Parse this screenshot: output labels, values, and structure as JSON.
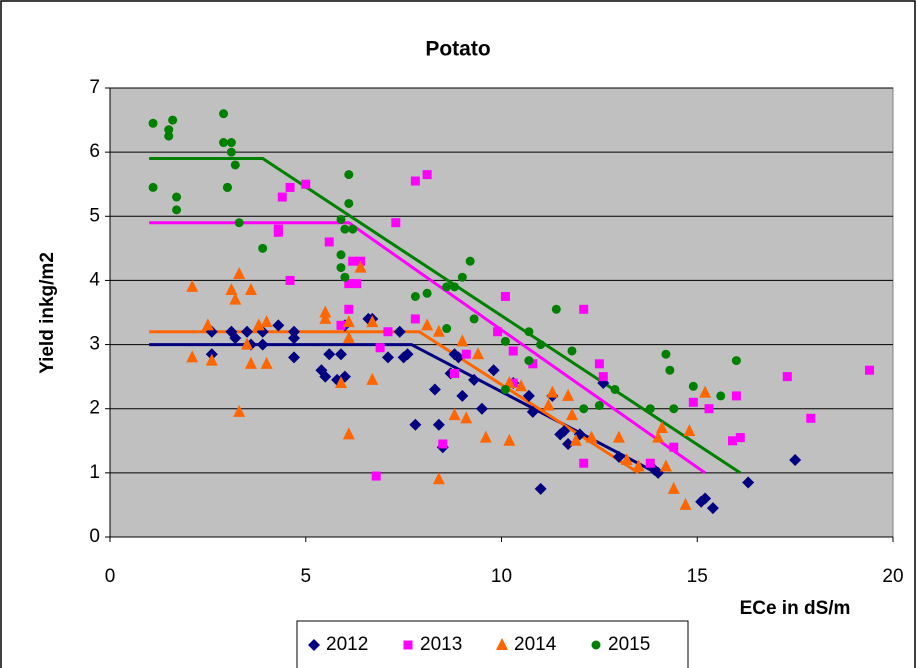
{
  "chart_data": {
    "type": "scatter",
    "title": "Potato",
    "x_label": "ECe in dS/m",
    "y_label": "Yield inkg/m2",
    "xlim": [
      0,
      20
    ],
    "ylim": [
      0,
      7
    ],
    "xticks": [
      0,
      5,
      10,
      15,
      20
    ],
    "yticks": [
      0,
      1,
      2,
      3,
      4,
      5,
      6,
      7
    ],
    "grid": true,
    "legend": "bottom",
    "series": [
      {
        "name": "2012",
        "color": "#000080",
        "marker": "diamond",
        "x": [
          2.6,
          2.6,
          3.1,
          3.2,
          3.5,
          3.6,
          3.9,
          3.9,
          4.3,
          4.7,
          4.7,
          4.7,
          5.4,
          5.5,
          5.6,
          5.8,
          5.9,
          6.0,
          6.0,
          6.6,
          6.7,
          7.1,
          7.4,
          7.5,
          7.6,
          7.8,
          8.3,
          8.4,
          8.5,
          8.7,
          8.8,
          8.9,
          9.0,
          9.3,
          9.5,
          9.8,
          10.3,
          10.7,
          10.8,
          11.0,
          11.3,
          11.5,
          11.6,
          11.7,
          12.0,
          12.6,
          13.0,
          13.9,
          14.0,
          15.1,
          15.2,
          15.4,
          16.3,
          17.5
        ],
        "values": [
          3.2,
          2.85,
          3.2,
          3.1,
          3.2,
          3.0,
          3.2,
          3.0,
          3.3,
          3.2,
          2.8,
          3.1,
          2.6,
          2.5,
          2.85,
          2.45,
          2.85,
          3.3,
          2.5,
          3.4,
          3.4,
          2.8,
          3.2,
          2.8,
          2.85,
          1.75,
          2.3,
          1.75,
          1.4,
          2.55,
          2.85,
          2.8,
          2.2,
          2.45,
          2.0,
          2.6,
          2.4,
          2.2,
          1.95,
          0.75,
          2.2,
          1.6,
          1.65,
          1.45,
          1.6,
          2.4,
          1.25,
          1.05,
          1.0,
          0.55,
          0.6,
          0.45,
          0.85,
          1.2
        ],
        "fit_x": [
          1.0,
          7.7,
          13.8
        ],
        "fit_y": [
          3.0,
          3.0,
          1.05
        ]
      },
      {
        "name": "2013",
        "color": "#ff00ff",
        "marker": "square",
        "x": [
          4.3,
          4.3,
          4.4,
          4.6,
          4.6,
          5.0,
          5.6,
          5.9,
          6.1,
          6.1,
          6.2,
          6.3,
          6.4,
          6.8,
          6.9,
          7.1,
          7.3,
          7.8,
          7.8,
          8.1,
          8.5,
          8.8,
          9.1,
          9.9,
          10.1,
          10.3,
          10.3,
          10.8,
          12.1,
          12.1,
          12.5,
          12.6,
          13.8,
          14.4,
          14.9,
          15.3,
          16.0,
          16.1,
          15.9,
          17.3,
          17.9,
          19.4
        ],
        "values": [
          4.75,
          4.8,
          5.3,
          5.45,
          4.0,
          5.5,
          4.6,
          3.3,
          3.95,
          3.55,
          4.3,
          3.95,
          4.3,
          0.95,
          2.95,
          3.2,
          4.9,
          3.4,
          5.55,
          5.65,
          1.45,
          2.55,
          2.85,
          3.2,
          3.75,
          2.9,
          2.4,
          2.7,
          3.55,
          1.15,
          2.7,
          2.5,
          1.15,
          1.4,
          2.1,
          2.0,
          2.2,
          1.55,
          1.5,
          2.5,
          1.85,
          2.6
        ],
        "fit_x": [
          1.0,
          6.1,
          15.2
        ],
        "fit_y": [
          4.9,
          4.9,
          1.0
        ]
      },
      {
        "name": "2014",
        "color": "#ff6600",
        "marker": "triangle",
        "x": [
          2.1,
          2.1,
          2.5,
          2.6,
          3.1,
          3.2,
          3.3,
          3.3,
          3.5,
          3.6,
          3.6,
          3.8,
          4.0,
          4.0,
          5.5,
          5.5,
          5.9,
          6.1,
          6.1,
          6.1,
          6.4,
          6.7,
          6.7,
          8.1,
          8.4,
          8.4,
          8.8,
          9.0,
          9.1,
          9.4,
          9.6,
          10.2,
          10.2,
          10.5,
          11.2,
          11.3,
          11.7,
          11.8,
          11.9,
          12.3,
          13.0,
          13.2,
          13.5,
          14.0,
          14.1,
          14.2,
          14.4,
          14.7,
          14.8,
          15.2
        ],
        "values": [
          3.9,
          2.8,
          3.3,
          2.75,
          3.85,
          3.7,
          4.1,
          1.95,
          3.0,
          3.85,
          2.7,
          3.3,
          3.35,
          2.7,
          3.5,
          3.4,
          2.4,
          3.35,
          3.1,
          1.6,
          4.2,
          3.35,
          2.45,
          3.3,
          3.2,
          0.9,
          1.9,
          3.05,
          1.85,
          2.85,
          1.55,
          2.4,
          1.5,
          2.35,
          2.05,
          2.25,
          2.2,
          1.9,
          1.5,
          1.55,
          1.55,
          1.2,
          1.1,
          1.55,
          1.7,
          1.1,
          0.75,
          0.5,
          1.65,
          2.25
        ],
        "fit_x": [
          1.0,
          7.9,
          13.5
        ],
        "fit_y": [
          3.2,
          3.2,
          1.0
        ]
      },
      {
        "name": "2015",
        "color": "#008000",
        "marker": "circle",
        "x": [
          1.1,
          1.1,
          1.5,
          1.5,
          1.6,
          1.7,
          1.7,
          2.9,
          2.9,
          3.0,
          3.0,
          3.1,
          3.1,
          3.2,
          3.3,
          3.9,
          5.9,
          5.9,
          5.9,
          6.0,
          6.0,
          6.1,
          6.1,
          6.2,
          7.8,
          8.1,
          8.6,
          8.6,
          8.8,
          9.0,
          9.2,
          9.3,
          10.1,
          10.1,
          10.7,
          10.7,
          11.0,
          11.4,
          11.8,
          12.1,
          12.5,
          12.9,
          13.8,
          14.2,
          14.3,
          14.4,
          14.9,
          15.6,
          16.0
        ],
        "values": [
          6.45,
          5.45,
          6.35,
          6.25,
          6.5,
          5.3,
          5.1,
          6.6,
          6.15,
          5.45,
          5.45,
          6.15,
          6.0,
          5.8,
          4.9,
          4.5,
          4.95,
          4.4,
          4.2,
          4.8,
          4.05,
          5.65,
          5.2,
          4.8,
          3.75,
          3.8,
          3.9,
          3.25,
          3.9,
          4.05,
          4.3,
          3.4,
          3.05,
          2.3,
          3.2,
          2.75,
          3.0,
          3.55,
          2.9,
          2.0,
          2.05,
          2.3,
          2.0,
          2.85,
          2.6,
          2.0,
          2.35,
          2.2,
          2.75
        ],
        "fit_x": [
          1.0,
          3.9,
          16.1
        ],
        "fit_y": [
          5.9,
          5.9,
          1.0
        ]
      }
    ]
  }
}
